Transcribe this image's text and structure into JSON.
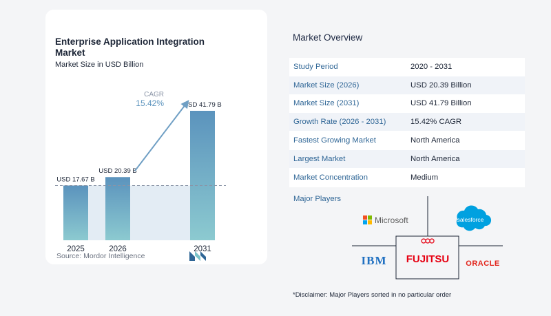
{
  "chart": {
    "title": "Enterprise Application Integration Market",
    "subtitle": "Market Size in USD Billion",
    "source_label": "Source:",
    "source_value": "Mordor Intelligence",
    "cagr_label": "CAGR",
    "cagr_value": "15.42%"
  },
  "chart_data": {
    "type": "bar",
    "title": "Enterprise Application Integration Market",
    "subtitle": "Market Size in USD Billion",
    "categories": [
      "2025",
      "2026",
      "2031"
    ],
    "values": [
      17.67,
      20.39,
      41.79
    ],
    "data_labels": [
      "USD 17.67 B",
      "USD 20.39 B",
      "USD 41.79 B"
    ],
    "ylim": [
      0,
      44
    ],
    "grid": false,
    "annotations": [
      {
        "text": "CAGR 15.42%",
        "from": "2026",
        "to": "2031"
      }
    ],
    "colors": {
      "bar_top": "#5b93bd",
      "bar_bottom": "#8ccad0",
      "band": "#e3ecf4",
      "arrow": "#6f9fc4",
      "cagr_value": "#5b93bd"
    }
  },
  "overview": {
    "title": "Market Overview",
    "rows": [
      {
        "label": "Study Period",
        "value": "2020 - 2031"
      },
      {
        "label": "Market Size (2026)",
        "value": "USD 20.39 Billion"
      },
      {
        "label": "Market Size (2031)",
        "value": "USD 41.79 Billion"
      },
      {
        "label": "Growth Rate (2026 - 2031)",
        "value": "15.42% CAGR"
      },
      {
        "label": "Fastest Growing Market",
        "value": "North America"
      },
      {
        "label": "Largest Market",
        "value": "North America"
      },
      {
        "label": "Market Concentration",
        "value": "Medium"
      }
    ]
  },
  "players": {
    "title": "Major Players",
    "logos": [
      "Microsoft",
      "salesforce",
      "IBM",
      "FUJITSU",
      "ORACLE"
    ]
  },
  "disclaimer": "*Disclaimer: Major Players sorted in no particular order"
}
